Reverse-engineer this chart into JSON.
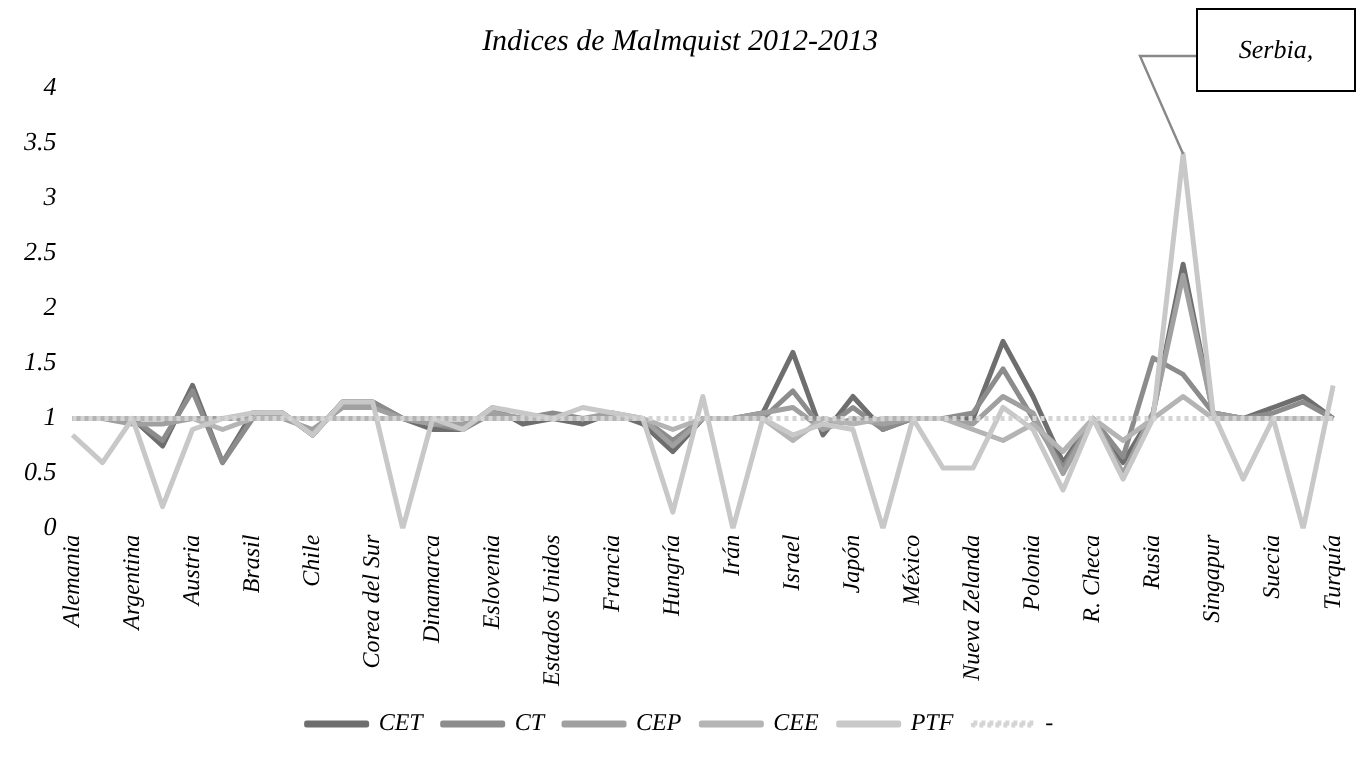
{
  "chart_data": {
    "type": "line",
    "title": "Indices de Malmquist 2012-2013",
    "categories": [
      "Alemania",
      null,
      "Argentina",
      null,
      "Austria",
      null,
      "Brasil",
      null,
      "Chile",
      null,
      "Corea del Sur",
      null,
      "Dinamarca",
      null,
      "Eslovenia",
      null,
      "Estados Unidos",
      null,
      "Francia",
      null,
      "Hungría",
      null,
      "Irán",
      null,
      "Israel",
      null,
      "Japón",
      null,
      "México",
      null,
      "Nueva Zelanda",
      null,
      "Polonia",
      null,
      "R. Checa",
      null,
      "Rusia",
      null,
      "Singapur",
      null,
      "Suecia",
      null,
      "Turquía"
    ],
    "series": [
      {
        "name": "CET",
        "color": "#6e6e6e",
        "values": [
          1.0,
          1.0,
          1.0,
          0.75,
          1.3,
          0.6,
          1.05,
          1.05,
          0.85,
          1.15,
          1.15,
          1.0,
          0.9,
          0.9,
          1.1,
          0.95,
          1.0,
          0.95,
          1.05,
          0.95,
          0.7,
          1.0,
          1.0,
          1.05,
          1.6,
          0.85,
          1.2,
          0.9,
          1.0,
          1.0,
          1.0,
          1.7,
          1.2,
          0.6,
          1.0,
          0.6,
          1.05,
          2.4,
          1.05,
          1.0,
          1.1,
          1.2,
          1.0
        ]
      },
      {
        "name": "CT",
        "color": "#8c8c8c",
        "values": [
          1.0,
          1.0,
          1.0,
          0.8,
          1.25,
          0.6,
          1.0,
          1.05,
          0.85,
          1.15,
          1.15,
          1.0,
          0.95,
          0.9,
          1.05,
          1.0,
          1.05,
          1.0,
          1.0,
          1.0,
          0.8,
          1.0,
          1.0,
          1.0,
          1.25,
          0.9,
          1.1,
          0.9,
          1.0,
          1.0,
          1.05,
          1.45,
          1.0,
          0.55,
          1.0,
          0.65,
          1.55,
          1.4,
          1.05,
          1.0,
          1.05,
          1.15,
          1.0
        ]
      },
      {
        "name": "CEP",
        "color": "#a0a0a0",
        "values": [
          1.0,
          1.0,
          0.95,
          0.95,
          1.0,
          1.0,
          1.0,
          1.0,
          0.9,
          1.1,
          1.1,
          1.0,
          0.95,
          0.95,
          1.05,
          1.0,
          1.0,
          1.0,
          1.05,
          1.0,
          0.75,
          1.0,
          1.0,
          1.05,
          1.1,
          0.9,
          1.0,
          0.95,
          1.0,
          1.0,
          0.95,
          1.2,
          1.05,
          0.5,
          1.0,
          0.5,
          1.05,
          2.3,
          1.05,
          1.0,
          1.0,
          1.0,
          1.0
        ]
      },
      {
        "name": "CEE",
        "color": "#b4b4b4",
        "values": [
          1.0,
          1.0,
          1.0,
          1.0,
          1.0,
          0.9,
          1.0,
          1.0,
          1.0,
          1.0,
          1.0,
          1.0,
          1.0,
          1.0,
          1.0,
          1.0,
          1.0,
          1.0,
          1.0,
          1.0,
          0.9,
          1.0,
          1.0,
          1.0,
          0.8,
          1.0,
          0.95,
          1.0,
          1.0,
          1.0,
          0.9,
          0.8,
          0.95,
          0.7,
          1.0,
          0.8,
          1.0,
          1.2,
          1.0,
          1.0,
          1.0,
          1.0,
          1.0
        ]
      },
      {
        "name": "PTF",
        "color": "#c8c8c8",
        "values": [
          0.85,
          0.6,
          1.0,
          0.2,
          0.9,
          1.0,
          1.05,
          1.05,
          0.85,
          1.15,
          1.15,
          0,
          1.0,
          0.9,
          1.1,
          1.05,
          1.0,
          1.1,
          1.05,
          1.0,
          0.15,
          1.2,
          0,
          1.0,
          0.85,
          0.95,
          0.9,
          0,
          1.0,
          0.55,
          0.55,
          1.1,
          0.9,
          0.35,
          1.0,
          0.45,
          1.0,
          3.4,
          1.05,
          0.45,
          1.0,
          0,
          1.3
        ]
      },
      {
        "name": "-",
        "color": "#d4d4d4",
        "line_style": "dotted",
        "values": [
          1,
          1,
          1,
          1,
          1,
          1,
          1,
          1,
          1,
          1,
          1,
          1,
          1,
          1,
          1,
          1,
          1,
          1,
          1,
          1,
          1,
          1,
          1,
          1,
          1,
          1,
          1,
          1,
          1,
          1,
          1,
          1,
          1,
          1,
          1,
          1,
          1,
          1,
          1,
          1,
          1,
          1,
          1
        ]
      }
    ],
    "ylim": [
      0,
      4
    ],
    "yticks": [
      0,
      0.5,
      1,
      1.5,
      2,
      2.5,
      3,
      3.5,
      4
    ],
    "annotations": [
      "Serbia,"
    ],
    "grid": false,
    "legend": "bottom",
    "marker": "none",
    "line_style": "solid"
  }
}
